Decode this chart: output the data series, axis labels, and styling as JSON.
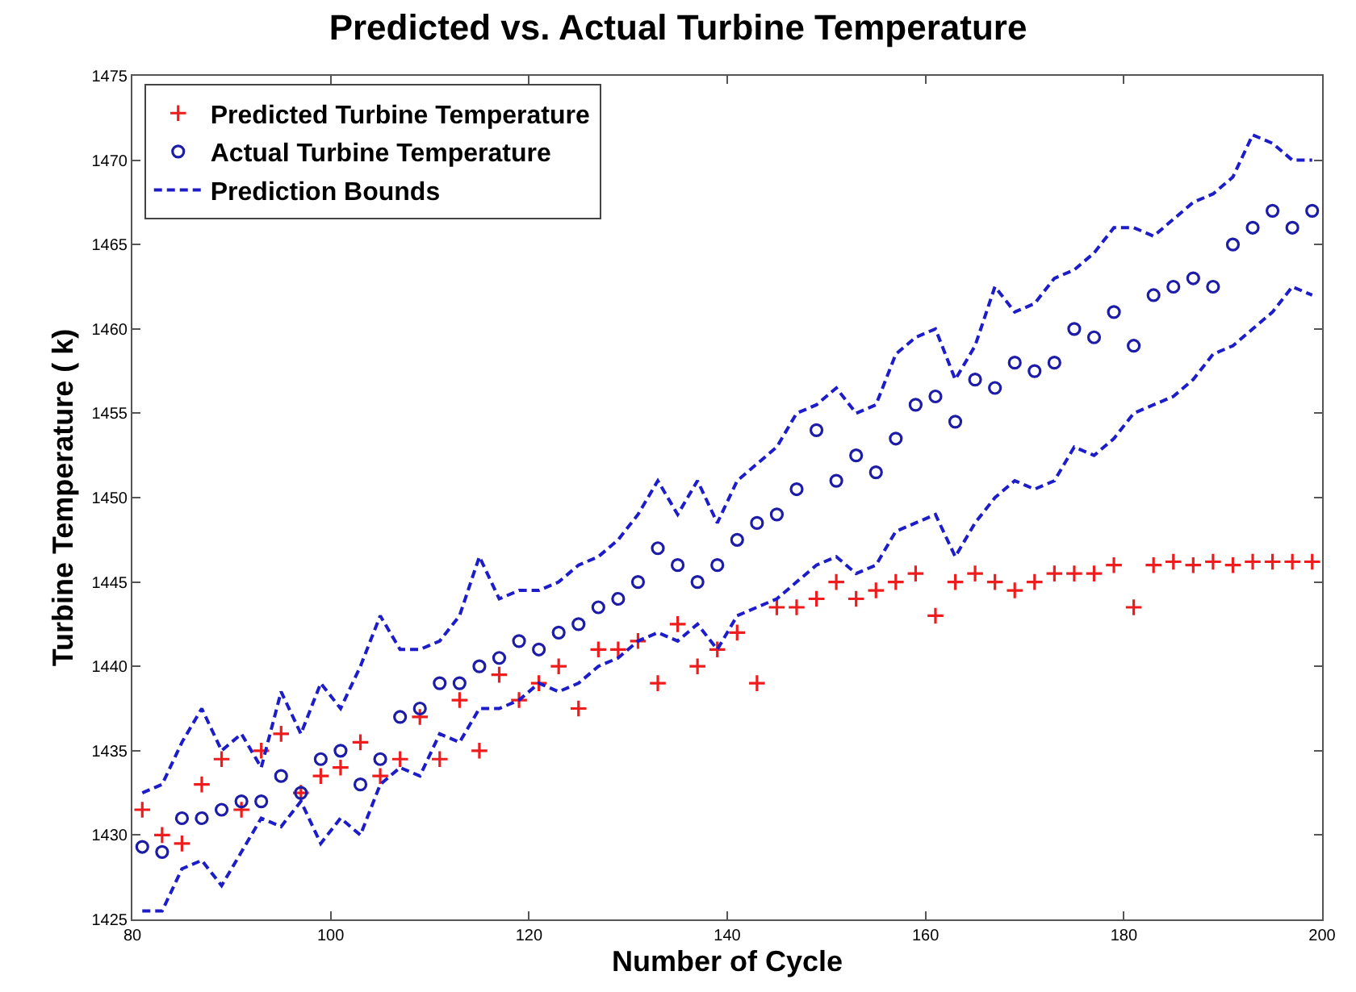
{
  "chart_data": {
    "type": "scatter",
    "title": "Predicted vs. Actual Turbine Temperature",
    "xlabel": "Number of Cycle",
    "ylabel": "Turbine Temperature ( k)",
    "x": [
      81,
      83,
      85,
      87,
      89,
      91,
      93,
      95,
      97,
      99,
      101,
      103,
      105,
      107,
      109,
      111,
      113,
      115,
      117,
      119,
      121,
      123,
      125,
      127,
      129,
      131,
      133,
      135,
      137,
      139,
      141,
      143,
      145,
      147,
      149,
      151,
      153,
      155,
      157,
      159,
      161,
      163,
      165,
      167,
      169,
      171,
      173,
      175,
      177,
      179,
      181,
      183,
      185,
      187,
      189,
      191,
      193,
      195,
      197,
      199
    ],
    "series": [
      {
        "name": "Predicted Turbine Temperature",
        "marker": "cross",
        "color": "#ee1c1c",
        "values": [
          1431.5,
          1430,
          1429.5,
          1433,
          1434.5,
          1431.5,
          1435,
          1436,
          1432.5,
          1433.5,
          1434,
          1435.5,
          1433.5,
          1434.5,
          1437,
          1434.5,
          1438,
          1435,
          1439.5,
          1438,
          1439,
          1440,
          1437.5,
          1441,
          1441,
          1441.5,
          1439,
          1442.5,
          1440,
          1441,
          1442,
          1439,
          1443.5,
          1443.5,
          1444,
          1445,
          1444,
          1444.5,
          1445,
          1445.5,
          1443,
          1445,
          1445.5,
          1445,
          1444.5,
          1445,
          1445.5,
          1445.5,
          1445.5,
          1446,
          1443.5,
          1446,
          1446.2,
          1446,
          1446.2,
          1446,
          1446.2,
          1446.2,
          1446.2,
          1446.2
        ]
      },
      {
        "name": "Actual Turbine Temperature",
        "marker": "circle",
        "color": "#1c1ca8",
        "values": [
          1429.3,
          1429,
          1431,
          1431,
          1431.5,
          1432,
          1432,
          1433.5,
          1432.5,
          1434.5,
          1435,
          1433,
          1434.5,
          1437,
          1437.5,
          1439,
          1439,
          1440,
          1440.5,
          1441.5,
          1441,
          1442,
          1442.5,
          1443.5,
          1444,
          1445,
          1447,
          1446,
          1445,
          1446,
          1447.5,
          1448.5,
          1449,
          1450.5,
          1454,
          1451,
          1452.5,
          1451.5,
          1453.5,
          1455.5,
          1456,
          1454.5,
          1457,
          1456.5,
          1458,
          1457.5,
          1458,
          1460,
          1459.5,
          1461,
          1459,
          1462,
          1462.5,
          1463,
          1462.5,
          1465,
          1466,
          1467,
          1466,
          1467
        ]
      },
      {
        "name": "Prediction Bounds",
        "type": "line",
        "line_style": "dashed",
        "color": "#1c1cc8",
        "values": [
          1432.5,
          1433,
          1435.5,
          1437.5,
          1435,
          1436,
          1434,
          1438.5,
          1436,
          1439,
          1437.5,
          1440,
          1443,
          1441,
          1441,
          1441.5,
          1443,
          1446.5,
          1444,
          1444.5,
          1444.5,
          1445,
          1446,
          1446.5,
          1447.5,
          1449,
          1451,
          1449,
          1451,
          1448.5,
          1451,
          1452,
          1453,
          1455,
          1455.5,
          1456.5,
          1455,
          1455.5,
          1458.5,
          1459.5,
          1460,
          1457,
          1459,
          1462.5,
          1461,
          1461.5,
          1463,
          1463.5,
          1464.5,
          1466,
          1466,
          1465.5,
          1466.5,
          1467.5,
          1468,
          1469,
          1471.5,
          1471,
          1470,
          1470
        ]
      },
      {
        "type": "line",
        "line_style": "dashed",
        "color": "#1c1cc8",
        "values": [
          1425.5,
          1425.5,
          1428,
          1428.5,
          1427,
          1429,
          1431,
          1430.5,
          1432,
          1429.5,
          1431,
          1430,
          1433,
          1434,
          1433.5,
          1436,
          1435.5,
          1437.5,
          1437.5,
          1438,
          1439,
          1438.5,
          1439,
          1440,
          1440.5,
          1441.5,
          1442,
          1441.5,
          1442.5,
          1441,
          1443,
          1443.5,
          1444,
          1445,
          1446,
          1446.5,
          1445.5,
          1446,
          1448,
          1448.5,
          1449,
          1446.5,
          1448.5,
          1450,
          1451,
          1450.5,
          1451,
          1453,
          1452.5,
          1453.5,
          1455,
          1455.5,
          1456,
          1457,
          1458.5,
          1459,
          1460,
          1461,
          1462.5,
          1462
        ]
      }
    ],
    "xlim": [
      80,
      200
    ],
    "xticks": [
      80,
      100,
      120,
      140,
      160,
      180,
      200
    ],
    "ylim": [
      1425,
      1475
    ],
    "yticks": [
      1425,
      1430,
      1435,
      1440,
      1445,
      1450,
      1455,
      1460,
      1465,
      1470,
      1475
    ],
    "legend": "top left"
  }
}
